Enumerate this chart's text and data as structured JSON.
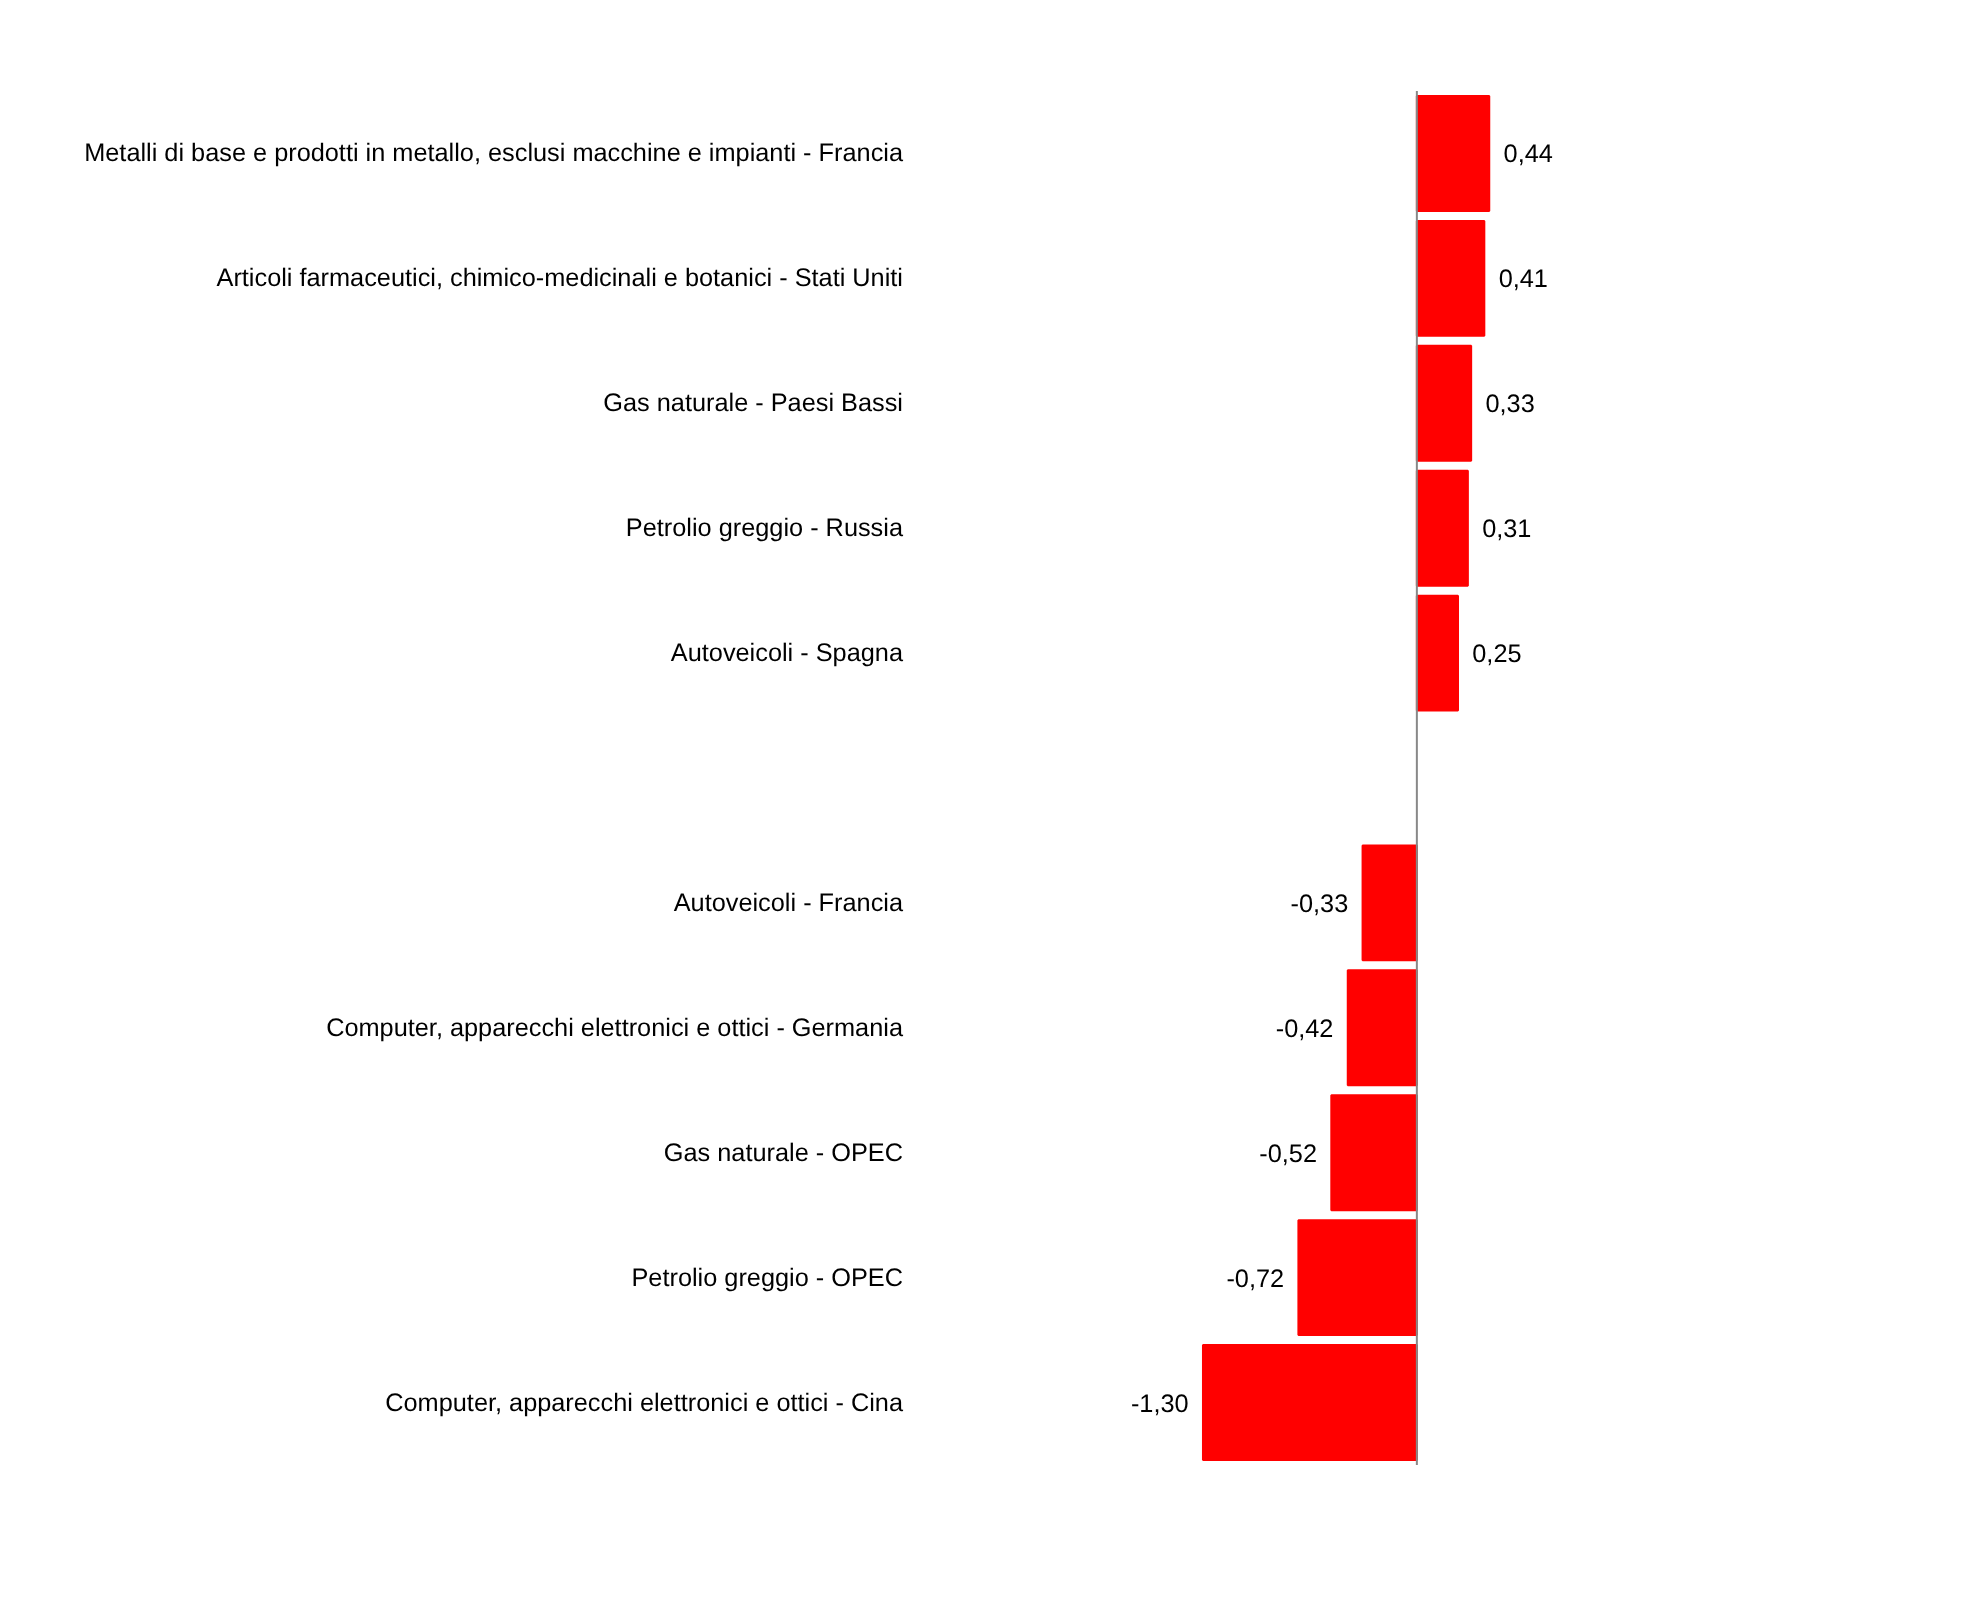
{
  "chart_data": {
    "type": "bar",
    "orientation": "horizontal",
    "categories": [
      "Metalli di base e prodotti in metallo, esclusi macchine e impianti - Francia",
      "Articoli farmaceutici, chimico-medicinali e botanici - Stati Uniti",
      "Gas naturale - Paesi Bassi",
      "Petrolio greggio - Russia",
      "Autoveicoli - Spagna",
      null,
      "Autoveicoli - Francia",
      "Computer, apparecchi elettronici e ottici - Germania",
      "Gas naturale - OPEC",
      "Petrolio greggio - OPEC",
      "Computer, apparecchi elettronici e ottici - Cina"
    ],
    "values": [
      0.44,
      0.41,
      0.33,
      0.31,
      0.25,
      null,
      -0.33,
      -0.42,
      -0.52,
      -0.72,
      -1.3
    ],
    "value_labels": [
      "0,44",
      "0,41",
      "0,33",
      "0,31",
      "0,25",
      null,
      "-0,33",
      "-0,42",
      "-0,52",
      "-0,72",
      "-1,30"
    ],
    "color": "#ff0000",
    "grid": false
  }
}
